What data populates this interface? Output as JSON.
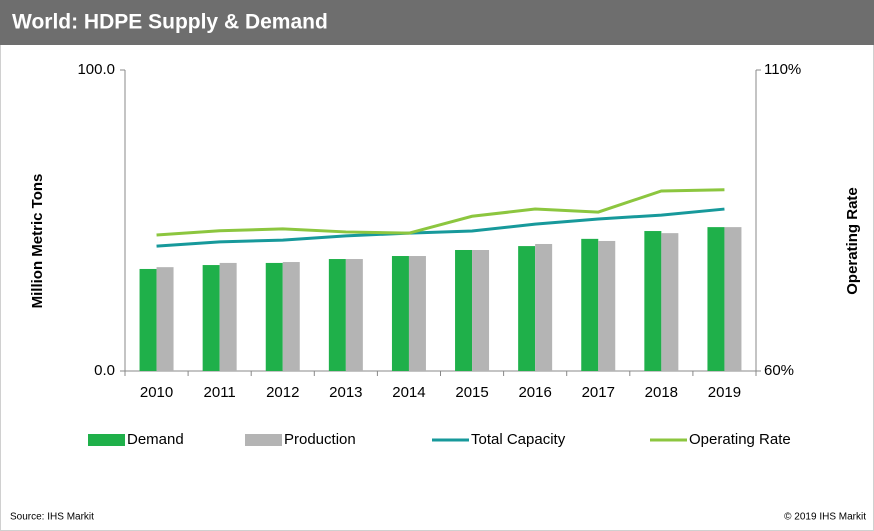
{
  "chart_data": {
    "type": "bar_line",
    "title": "World: HDPE Supply & Demand",
    "y_label": "Million Metric Tons",
    "y2_label": "Operating Rate",
    "categories": [
      "2010",
      "2011",
      "2012",
      "2013",
      "2014",
      "2015",
      "2016",
      "2017",
      "2018",
      "2019"
    ],
    "ylim": [
      0,
      100
    ],
    "yticks": [
      {
        "value": 0,
        "label": "0.0"
      },
      {
        "value": 100,
        "label": "100.0"
      }
    ],
    "y2lim": [
      60,
      110
    ],
    "y2ticks": [
      {
        "value": 60,
        "label": "60%"
      },
      {
        "value": 110,
        "label": "110%"
      }
    ],
    "series": [
      {
        "name": "Demand",
        "kind": "bar",
        "color": "#1fb04a",
        "values": [
          33.9,
          35.2,
          35.9,
          37.2,
          38.2,
          40.2,
          41.5,
          43.9,
          46.5,
          47.8
        ]
      },
      {
        "name": "Production",
        "kind": "bar",
        "color": "#b4b4b4",
        "values": [
          34.5,
          35.9,
          36.2,
          37.2,
          38.2,
          40.2,
          42.2,
          43.2,
          45.8,
          47.8
        ]
      },
      {
        "name": "Total Capacity",
        "kind": "line",
        "color": "#17999b",
        "values": [
          41.5,
          42.9,
          43.5,
          44.9,
          45.8,
          46.5,
          48.8,
          50.5,
          51.8,
          53.8
        ]
      },
      {
        "name": "Operating Rate",
        "kind": "line",
        "axis": "y2",
        "color": "#8cc63f",
        "values": [
          82.6,
          83.3,
          83.6,
          83.1,
          82.9,
          85.7,
          86.9,
          86.4,
          89.9,
          90.1
        ]
      }
    ],
    "source": "Source: IHS Markit",
    "copyright": "© 2019 IHS Markit"
  }
}
